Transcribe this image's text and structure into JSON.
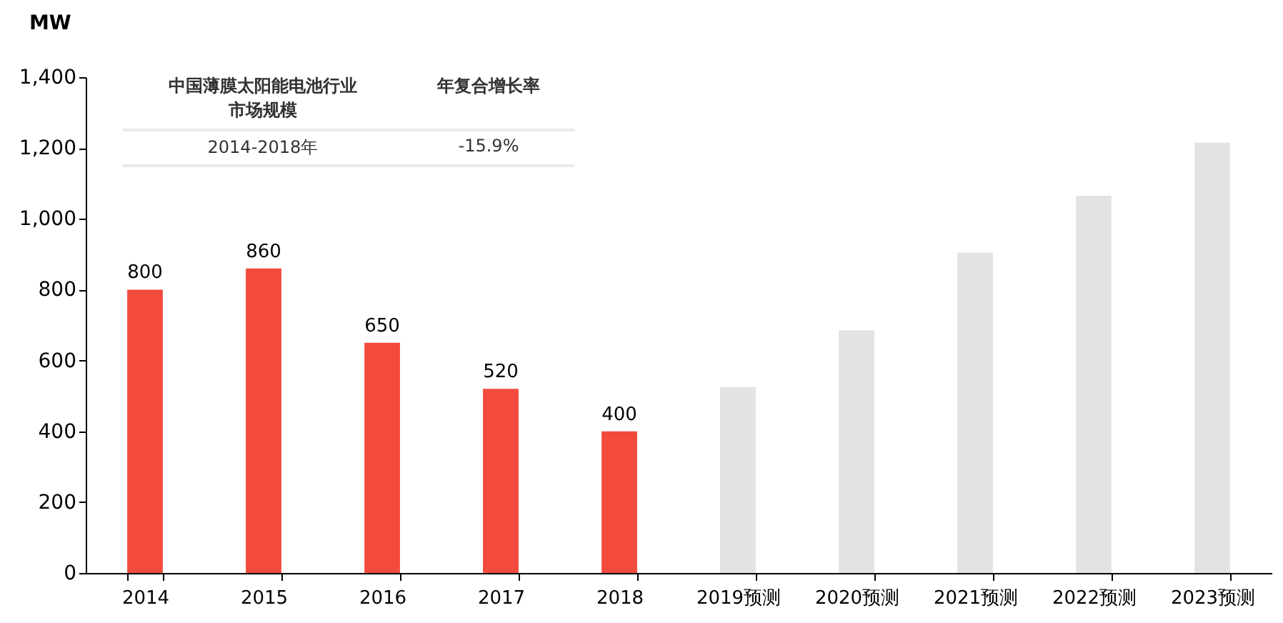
{
  "chart_data": {
    "type": "bar",
    "ylabel": "MW",
    "categories": [
      "2014",
      "2015",
      "2016",
      "2017",
      "2018",
      "2019预测",
      "2020预测",
      "2021预测",
      "2022预测",
      "2023预测"
    ],
    "values": [
      800,
      860,
      650,
      520,
      400,
      525,
      685,
      905,
      1065,
      1215
    ],
    "colors": [
      "#f24a3d",
      "#f24a3d",
      "#f24a3d",
      "#f24a3d",
      "#f24a3d",
      "#e3e3e3",
      "#e3e3e3",
      "#e3e3e3",
      "#e3e3e3",
      "#e3e3e3"
    ],
    "value_labels": [
      "800",
      "860",
      "650",
      "520",
      "400",
      null,
      null,
      null,
      null,
      null
    ],
    "ylim": [
      0,
      1400
    ],
    "yticks": [
      0,
      200,
      400,
      600,
      800,
      {
        "value": 1000,
        "label": "1,000"
      },
      {
        "value": 1200,
        "label": "1,200"
      },
      {
        "value": 1400,
        "label": "1,400"
      }
    ],
    "annotations": [
      "中国薄膜太阳能电池行业市场规模",
      "年复合增长率",
      "2014-2018年",
      "-15.9%"
    ],
    "grid": false
  }
}
